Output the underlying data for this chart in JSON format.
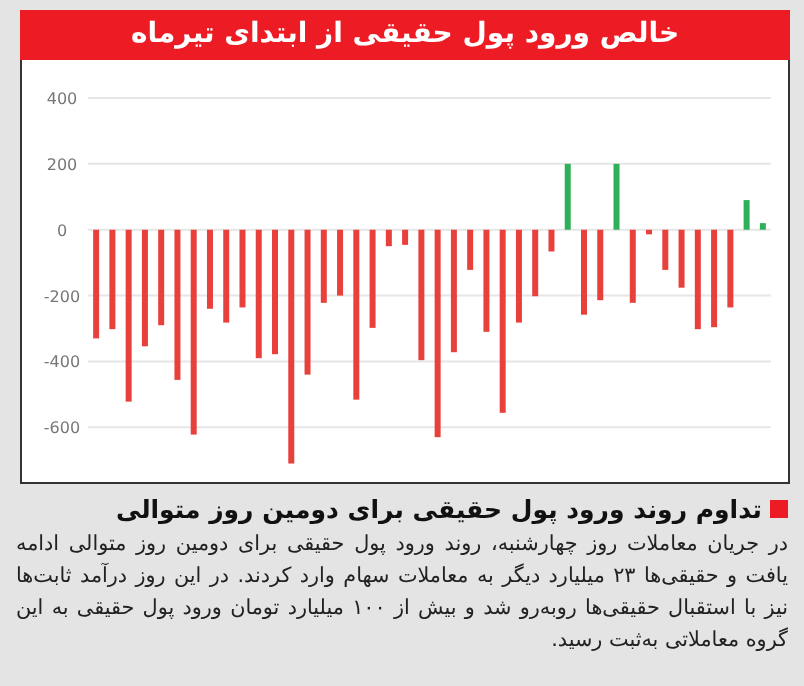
{
  "chart_data": {
    "type": "bar",
    "title": "خالص ورود پول حقیقی از ابتدای تیرماه",
    "annotations": [
      "تداوم روند ورود پول حقیقی برای دومین روز متوالی",
      "در جریان معاملات روز چهارشنبه، روند ورود پول حقیقی برای دومین روز متوالی ادامه یافت و حقیقی‌ها ۲۳ میلیارد دیگر به معاملات سهام وارد کردند. در این روز درآمد ثابت‌ها نیز با استقبال حقیقی‌ها روبه‌رو شد و بیش از ۱۰۰ میلیارد تومان ورود پول حقیقی به این گروه معاملاتی به‌ثبت رسید."
    ],
    "categories": [
      null,
      null,
      null,
      null,
      null,
      null,
      null,
      null,
      null,
      null,
      null,
      null,
      null,
      null,
      null,
      null,
      null,
      null,
      null,
      null,
      null,
      null,
      null,
      null,
      null,
      null,
      null,
      null,
      null,
      null,
      null,
      null,
      null,
      null,
      null,
      null,
      null,
      null,
      null,
      null,
      null,
      null
    ],
    "values": [
      -330,
      -302,
      -522,
      -354,
      -290,
      -456,
      -622,
      -240,
      -282,
      -236,
      -390,
      -378,
      -710,
      -440,
      -222,
      -200,
      -516,
      -298,
      -50,
      -46,
      -396,
      -630,
      -372,
      -122,
      -310,
      -556,
      -282,
      -202,
      -66,
      200,
      -258,
      -214,
      200,
      -222,
      -14,
      -122,
      -176,
      -302,
      -296,
      -236,
      90,
      20
    ],
    "colors": [
      "#e8413c",
      "#e8413c",
      "#e8413c",
      "#e8413c",
      "#e8413c",
      "#e8413c",
      "#e8413c",
      "#e8413c",
      "#e8413c",
      "#e8413c",
      "#e8413c",
      "#e8413c",
      "#e8413c",
      "#e8413c",
      "#e8413c",
      "#e8413c",
      "#e8413c",
      "#e8413c",
      "#e8413c",
      "#e8413c",
      "#e8413c",
      "#e8413c",
      "#e8413c",
      "#e8413c",
      "#e8413c",
      "#e8413c",
      "#e8413c",
      "#e8413c",
      "#e8413c",
      "#2eb05a",
      "#e8413c",
      "#e8413c",
      "#2eb05a",
      "#e8413c",
      "#e8413c",
      "#e8413c",
      "#e8413c",
      "#e8413c",
      "#e8413c",
      "#e8413c",
      "#2eb05a",
      "#2eb05a"
    ],
    "ylim": [
      -760,
      400
    ],
    "yticks": [
      -600,
      -400,
      -200,
      0,
      200,
      400
    ],
    "grid": "y",
    "tick_labels": "y"
  }
}
